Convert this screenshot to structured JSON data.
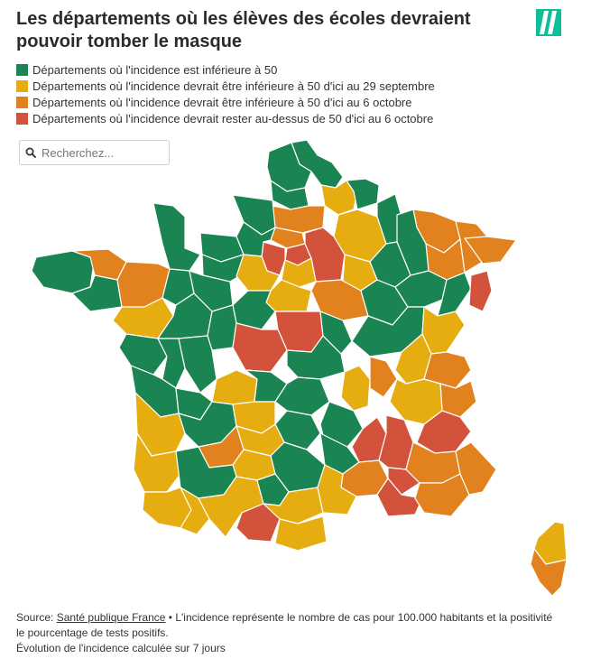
{
  "title": "Les départements où les élèves des écoles devraient pouvoir tomber le masque",
  "legend": [
    {
      "label": "Départements où l'incidence est inférieure à 50",
      "color": "#1a8452"
    },
    {
      "label": "Départements où l'incidence devrait être inférieure à 50 d'ici au 29 septembre",
      "color": "#e6ad10"
    },
    {
      "label": "Départements où l'incidence devrait être inférieure à 50 d'ici au 6 octobre",
      "color": "#e1821e"
    },
    {
      "label": "Départements où l'incidence devrait rester au-dessus de 50 d'ici au 6 octobre",
      "color": "#d2523c"
    }
  ],
  "search": {
    "placeholder": "Recherchez...",
    "icon": "search-icon"
  },
  "map": {
    "border_color": "#ffffff"
  },
  "footer": {
    "source_prefix": "Source: ",
    "source_link": "Santé publique France",
    "note": " • L'incidence représente le nombre de cas pour 100.000 habitants et la positivité le pourcentage de tests positifs.",
    "evolution": "Évolution de l'incidence calculée sur 7 jours"
  }
}
